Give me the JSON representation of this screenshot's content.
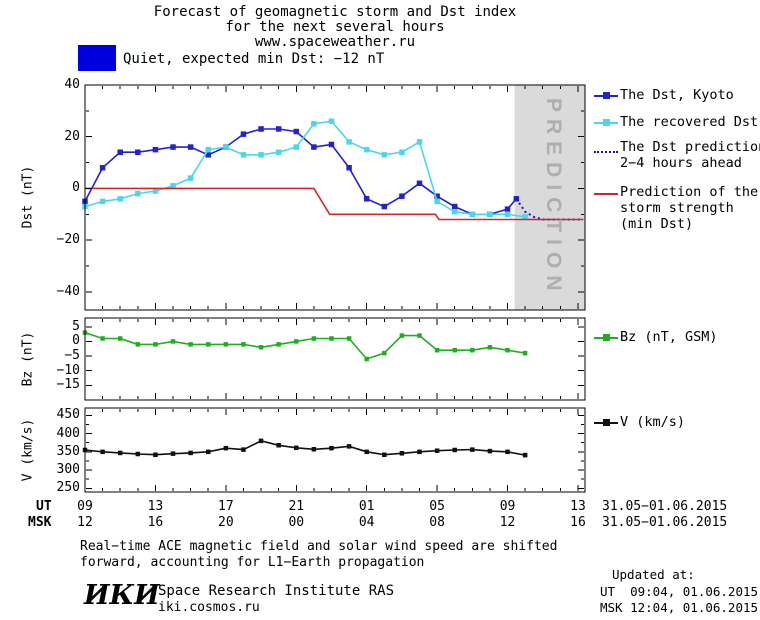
{
  "title": {
    "line1": "Forecast of geomagnetic storm and Dst index",
    "line2": "for the next several hours",
    "line3": "www.spaceweather.ru"
  },
  "status_banner": {
    "label": "Quiet, expected min Dst: −12 nT",
    "box_color": "#0000dd"
  },
  "prediction_band_label": "PREDICTION",
  "legend": {
    "kyoto": "The Dst, Kyoto",
    "recovered": "The recovered Dst",
    "prediction_line1": "The Dst prediction",
    "prediction_line2": "2−4 hours ahead",
    "storm_line1": "Prediction of the",
    "storm_line2": "storm strength",
    "storm_line3": "(min Dst)",
    "bz": "Bz (nT, GSM)",
    "v": "V (km/s)"
  },
  "axes": {
    "dst_ylabel": "Dst (nT)",
    "bz_ylabel": "Bz (nT)",
    "v_ylabel": "V (km/s)",
    "ut_row_label": "UT",
    "msk_row_label": "MSK",
    "ut_date": "31.05−01.06.2015",
    "msk_date": "31.05−01.06.2015"
  },
  "footnote": {
    "line1": "Real−time ACE magnetic field and solar wind speed are shifted",
    "line2": "forward, accounting for L1−Earth propagation"
  },
  "updated": {
    "heading": "Updated at:",
    "ut": "UT  09:04, 01.06.2015",
    "msk": "MSK 12:04, 01.06.2015"
  },
  "footer": {
    "logo": "ИКИ",
    "org": "Space Research Institute RAS",
    "site": "iki.cosmos.ru"
  },
  "chart_data": {
    "type": "line",
    "x_axis": {
      "unit": "hours UT, 31.05 09:00 through 01.06 13:00 (hours>24 are next day)",
      "xlim": [
        9,
        37.4
      ],
      "ticks_hours": [
        9,
        13,
        17,
        21,
        25,
        29,
        33,
        37
      ],
      "tick_labels_ut": [
        "09",
        "13",
        "17",
        "21",
        "01",
        "05",
        "09",
        "13"
      ],
      "tick_labels_msk": [
        "12",
        "16",
        "20",
        "00",
        "04",
        "08",
        "12",
        "16"
      ]
    },
    "panels": [
      {
        "name": "dst",
        "ylabel": "Dst (nT)",
        "ylim": [
          -47,
          40
        ],
        "yticks": [
          40,
          20,
          0,
          -20,
          -40
        ],
        "yminor_step": 10,
        "prediction_band_start_hour": 33.4,
        "series": [
          {
            "label": "The Dst, Kyoto",
            "color": "#2323cc",
            "marker": true,
            "x": [
              9,
              10,
              11,
              12,
              13,
              14,
              15,
              16,
              17,
              18,
              19,
              20,
              21,
              22,
              23,
              24,
              25,
              26,
              27,
              28,
              29,
              30,
              31,
              32,
              33,
              33.5
            ],
            "y": [
              -5,
              8,
              14,
              14,
              15,
              16,
              16,
              13,
              16,
              21,
              23,
              23,
              22,
              16,
              17,
              8,
              -4,
              -7,
              -3,
              2,
              -3,
              -7,
              -10,
              -10,
              -8,
              -4
            ]
          },
          {
            "label": "The recovered Dst",
            "color": "#4cd6ee",
            "marker": true,
            "x": [
              9,
              10,
              11,
              12,
              13,
              14,
              15,
              16,
              17,
              18,
              19,
              20,
              21,
              22,
              23,
              24,
              25,
              26,
              27,
              28,
              29,
              30,
              31,
              32,
              33,
              34
            ],
            "y": [
              -7,
              -5,
              -4,
              -2,
              -1,
              1,
              4,
              15,
              16,
              13,
              13,
              14,
              16,
              25,
              26,
              18,
              15,
              13,
              14,
              18,
              -5,
              -9,
              -10,
              -10,
              -10,
              -11
            ]
          },
          {
            "label": "The Dst prediction 2−4 hours ahead",
            "color": "#1414bb",
            "style": "dotted",
            "x": [
              33.5,
              34,
              34.5,
              35,
              35.5,
              36,
              36.5,
              37,
              37.3
            ],
            "y": [
              -4,
              -9,
              -11,
              -12,
              -12,
              -12,
              -12,
              -12,
              -12
            ]
          },
          {
            "label": "Prediction of the storm strength (min Dst)",
            "color": "#cc2a2a",
            "x": [
              9,
              22,
              22.9,
              28.9,
              29.1,
              37.3
            ],
            "y": [
              0,
              0,
              -10,
              -10,
              -12,
              -12
            ]
          }
        ]
      },
      {
        "name": "bz",
        "ylabel": "Bz (nT)",
        "ylim": [
          -20,
          8
        ],
        "yticks": [
          5,
          0,
          -5,
          -10,
          -15
        ],
        "series": [
          {
            "label": "Bz (nT, GSM)",
            "color": "#21ad21",
            "marker": true,
            "x": [
              9,
              10,
              11,
              12,
              13,
              14,
              15,
              16,
              17,
              18,
              19,
              20,
              21,
              22,
              23,
              24,
              25,
              26,
              27,
              28,
              29,
              30,
              31,
              32,
              33,
              34
            ],
            "y": [
              3,
              1,
              1,
              -1,
              -1,
              0,
              -1,
              -1,
              -1,
              -1,
              -2,
              -1,
              0,
              1,
              1,
              1,
              -6,
              -4,
              2,
              2,
              -3,
              -3,
              -3,
              -2,
              -3,
              -4
            ]
          }
        ]
      },
      {
        "name": "v",
        "ylabel": "V (km/s)",
        "ylim": [
          240,
          470
        ],
        "yticks": [
          450,
          400,
          350,
          300,
          250
        ],
        "yminor_step": 25,
        "series": [
          {
            "label": "V (km/s)",
            "color": "#111111",
            "marker": true,
            "x": [
              9,
              10,
              11,
              12,
              13,
              14,
              15,
              16,
              17,
              18,
              19,
              20,
              21,
              22,
              23,
              24,
              25,
              26,
              27,
              28,
              29,
              30,
              31,
              32,
              33,
              34
            ],
            "y": [
              355,
              350,
              347,
              344,
              342,
              345,
              347,
              350,
              360,
              356,
              380,
              368,
              361,
              357,
              360,
              365,
              350,
              342,
              346,
              350,
              353,
              355,
              356,
              352,
              350,
              341
            ]
          }
        ]
      }
    ]
  }
}
